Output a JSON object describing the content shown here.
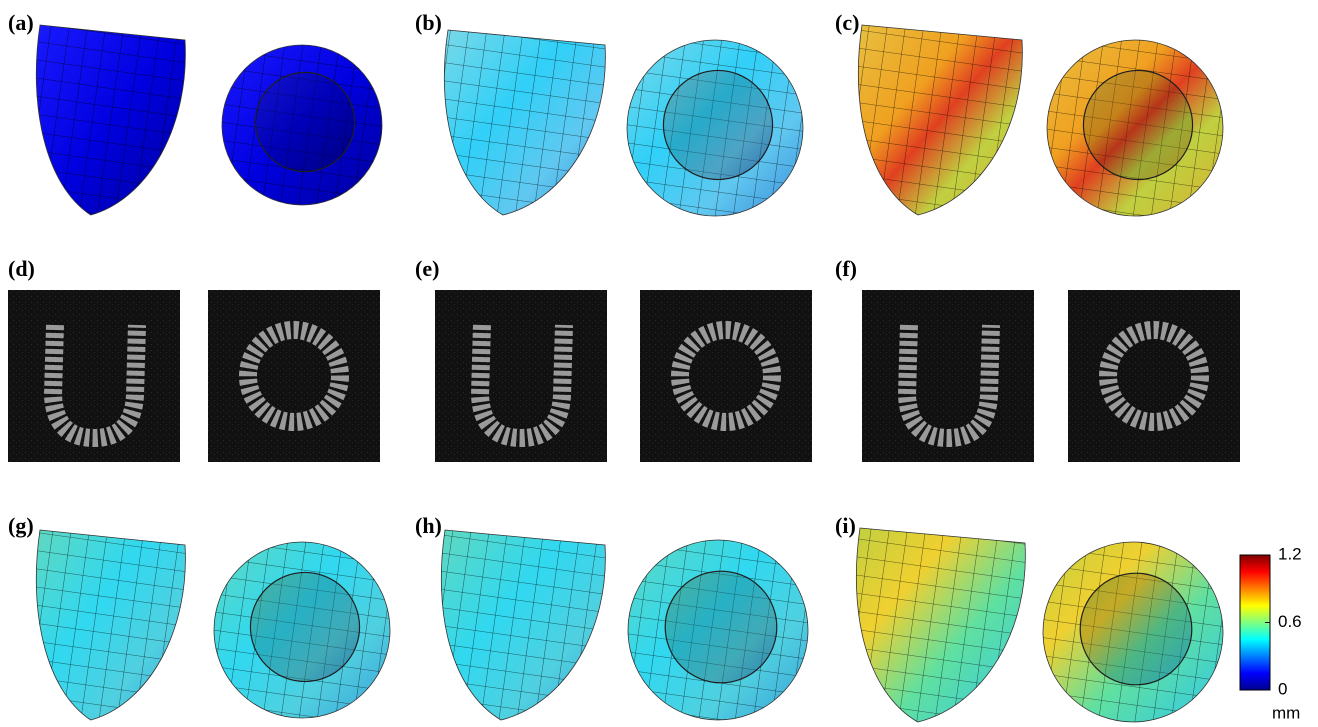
{
  "panels": [
    {
      "label": "(a)"
    },
    {
      "label": "(b)"
    },
    {
      "label": "(c)"
    },
    {
      "label": "(d)"
    },
    {
      "label": "(e)"
    },
    {
      "label": "(f)"
    },
    {
      "label": "(g)"
    },
    {
      "label": "(h)"
    },
    {
      "label": "(i)"
    }
  ],
  "colorbar": {
    "lim": [
      0,
      1.2
    ],
    "ticks": [
      0,
      0.6,
      1.2
    ],
    "unit": "mm"
  }
}
